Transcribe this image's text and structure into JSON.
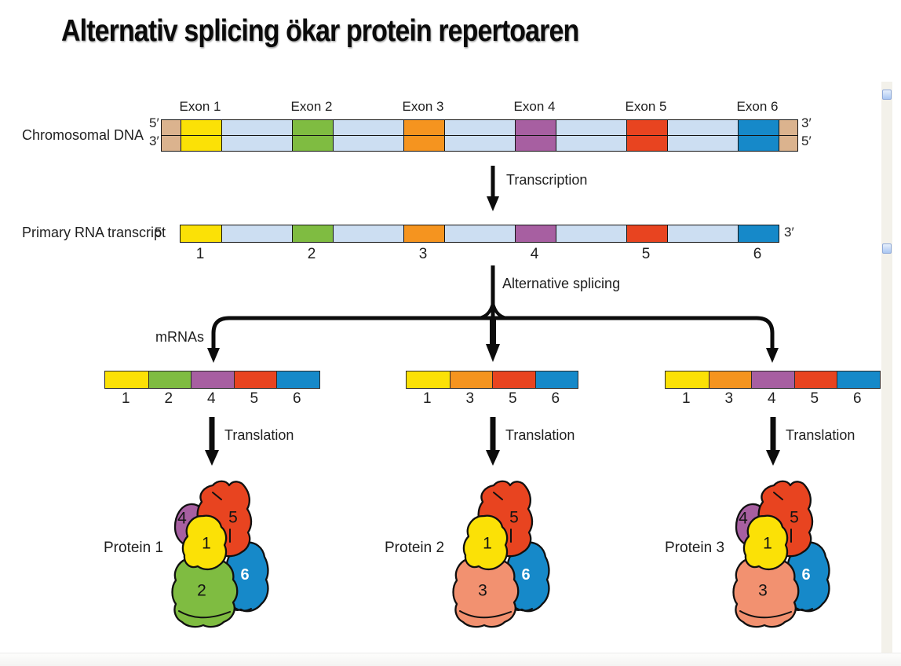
{
  "title": "Alternativ splicing ökar protein repertoaren",
  "colors": {
    "yellow": "#FBE106",
    "green": "#7FBC41",
    "orange": "#F5941F",
    "purple": "#A75FA1",
    "red": "#E84420",
    "blue": "#1689C9",
    "tan": "#DBB38E",
    "intron": "#CCDEF2",
    "salmon": "#F29170",
    "outline": "#101010",
    "arrow": "#0c0c0c"
  },
  "dna": {
    "label": "Chromosomal DNA",
    "left_top": "5′",
    "left_bottom": "3′",
    "right_top": "3′",
    "right_bottom": "5′",
    "exon_labels": [
      "Exon 1",
      "Exon 2",
      "Exon 3",
      "Exon 4",
      "Exon 5",
      "Exon 6"
    ],
    "segments": [
      {
        "kind": "cap",
        "color_key": "tan"
      },
      {
        "kind": "exon",
        "color_key": "yellow"
      },
      {
        "kind": "intron",
        "color_key": "intron"
      },
      {
        "kind": "exon",
        "color_key": "green"
      },
      {
        "kind": "intron",
        "color_key": "intron"
      },
      {
        "kind": "exon",
        "color_key": "orange"
      },
      {
        "kind": "intron",
        "color_key": "intron"
      },
      {
        "kind": "exon",
        "color_key": "purple"
      },
      {
        "kind": "intron",
        "color_key": "intron"
      },
      {
        "kind": "exon",
        "color_key": "red"
      },
      {
        "kind": "intron",
        "color_key": "intron"
      },
      {
        "kind": "exon",
        "color_key": "blue"
      },
      {
        "kind": "cap",
        "color_key": "tan"
      }
    ]
  },
  "transcription": {
    "label": "Transcription"
  },
  "rna": {
    "label": "Primary RNA transcript",
    "left": "5′",
    "right": "3′",
    "numbers": [
      "1",
      "2",
      "3",
      "4",
      "5",
      "6"
    ],
    "segments": [
      {
        "kind": "exon",
        "color_key": "yellow"
      },
      {
        "kind": "intron",
        "color_key": "intron"
      },
      {
        "kind": "exon",
        "color_key": "green"
      },
      {
        "kind": "intron",
        "color_key": "intron"
      },
      {
        "kind": "exon",
        "color_key": "orange"
      },
      {
        "kind": "intron",
        "color_key": "intron"
      },
      {
        "kind": "exon",
        "color_key": "purple"
      },
      {
        "kind": "intron",
        "color_key": "intron"
      },
      {
        "kind": "exon",
        "color_key": "red"
      },
      {
        "kind": "intron",
        "color_key": "intron"
      },
      {
        "kind": "exon",
        "color_key": "blue"
      }
    ]
  },
  "splicing": {
    "label": "Alternative splicing",
    "mrnas_label": "mRNAs"
  },
  "mrnas": [
    {
      "exons": [
        {
          "num": "1",
          "color_key": "yellow"
        },
        {
          "num": "2",
          "color_key": "green"
        },
        {
          "num": "4",
          "color_key": "purple"
        },
        {
          "num": "5",
          "color_key": "red"
        },
        {
          "num": "6",
          "color_key": "blue"
        }
      ]
    },
    {
      "exons": [
        {
          "num": "1",
          "color_key": "yellow"
        },
        {
          "num": "3",
          "color_key": "orange"
        },
        {
          "num": "5",
          "color_key": "red"
        },
        {
          "num": "6",
          "color_key": "blue"
        }
      ]
    },
    {
      "exons": [
        {
          "num": "1",
          "color_key": "yellow"
        },
        {
          "num": "3",
          "color_key": "orange"
        },
        {
          "num": "4",
          "color_key": "purple"
        },
        {
          "num": "5",
          "color_key": "red"
        },
        {
          "num": "6",
          "color_key": "blue"
        }
      ]
    }
  ],
  "translation": {
    "label": "Translation"
  },
  "proteins": [
    {
      "label": "Protein 1",
      "subunits": [
        {
          "num": "4",
          "slot": "4",
          "color_key": "purple",
          "text_color": "#141414"
        },
        {
          "num": "6",
          "slot": "6",
          "color_key": "blue",
          "text_color": "#ffffff",
          "bold": true
        },
        {
          "num": "5",
          "slot": "5",
          "color_key": "red",
          "text_color": "#141414"
        },
        {
          "num": "2",
          "slot": "B",
          "color_key": "green",
          "text_color": "#141414"
        },
        {
          "num": "1",
          "slot": "1",
          "color_key": "yellow",
          "text_color": "#141414"
        }
      ]
    },
    {
      "label": "Protein 2",
      "subunits": [
        {
          "num": "6",
          "slot": "6",
          "color_key": "blue",
          "text_color": "#ffffff",
          "bold": true
        },
        {
          "num": "5",
          "slot": "5",
          "color_key": "red",
          "text_color": "#141414"
        },
        {
          "num": "3",
          "slot": "B",
          "color_key": "salmon",
          "text_color": "#141414"
        },
        {
          "num": "1",
          "slot": "1",
          "color_key": "yellow",
          "text_color": "#141414"
        }
      ]
    },
    {
      "label": "Protein 3",
      "subunits": [
        {
          "num": "4",
          "slot": "4",
          "color_key": "purple",
          "text_color": "#141414"
        },
        {
          "num": "6",
          "slot": "6",
          "color_key": "blue",
          "text_color": "#ffffff",
          "bold": true
        },
        {
          "num": "5",
          "slot": "5",
          "color_key": "red",
          "text_color": "#141414"
        },
        {
          "num": "3",
          "slot": "B",
          "color_key": "salmon",
          "text_color": "#141414"
        },
        {
          "num": "1",
          "slot": "1",
          "color_key": "yellow",
          "text_color": "#141414"
        }
      ]
    }
  ],
  "viewer": {
    "annotation_marker_icons": [
      "annotation-marker-icon",
      "annotation-marker-icon"
    ]
  }
}
